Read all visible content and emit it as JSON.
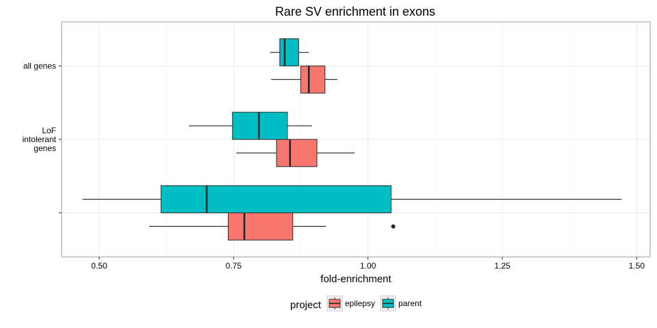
{
  "chart_data": {
    "type": "boxplot",
    "title": "Rare SV enrichment in exons",
    "xlabel": "fold-enrichment",
    "ylabel": "",
    "xlim": [
      0.43,
      1.525
    ],
    "x_ticks": [
      "0.50",
      "0.75",
      "1.00",
      "1.25",
      "1.50"
    ],
    "x_tick_values": [
      0.5,
      0.75,
      1.0,
      1.25,
      1.5
    ],
    "grid": true,
    "legend": {
      "title": "project",
      "position": "bottom"
    },
    "categories": [
      {
        "label_lines": [
          "all genes"
        ]
      },
      {
        "label_lines": [
          "LoF",
          "intolerant",
          "genes"
        ]
      },
      {
        "label_lines": []
      }
    ],
    "series": [
      {
        "name": "epilepsy",
        "color": "#F8766D",
        "boxes": [
          {
            "min": 0.82,
            "q1": 0.875,
            "median": 0.89,
            "q3": 0.92,
            "max": 0.943,
            "outliers": []
          },
          {
            "min": 0.755,
            "q1": 0.83,
            "median": 0.855,
            "q3": 0.905,
            "max": 0.975,
            "outliers": []
          },
          {
            "min": 0.593,
            "q1": 0.74,
            "median": 0.77,
            "q3": 0.86,
            "max": 0.922,
            "outliers": [
              1.047
            ]
          }
        ]
      },
      {
        "name": "parent",
        "color": "#00BFC4",
        "boxes": [
          {
            "min": 0.818,
            "q1": 0.836,
            "median": 0.845,
            "q3": 0.871,
            "max": 0.89,
            "outliers": []
          },
          {
            "min": 0.667,
            "q1": 0.748,
            "median": 0.797,
            "q3": 0.85,
            "max": 0.896,
            "outliers": []
          },
          {
            "min": 0.469,
            "q1": 0.615,
            "median": 0.7,
            "q3": 1.043,
            "max": 1.472,
            "outliers": []
          }
        ]
      }
    ]
  }
}
